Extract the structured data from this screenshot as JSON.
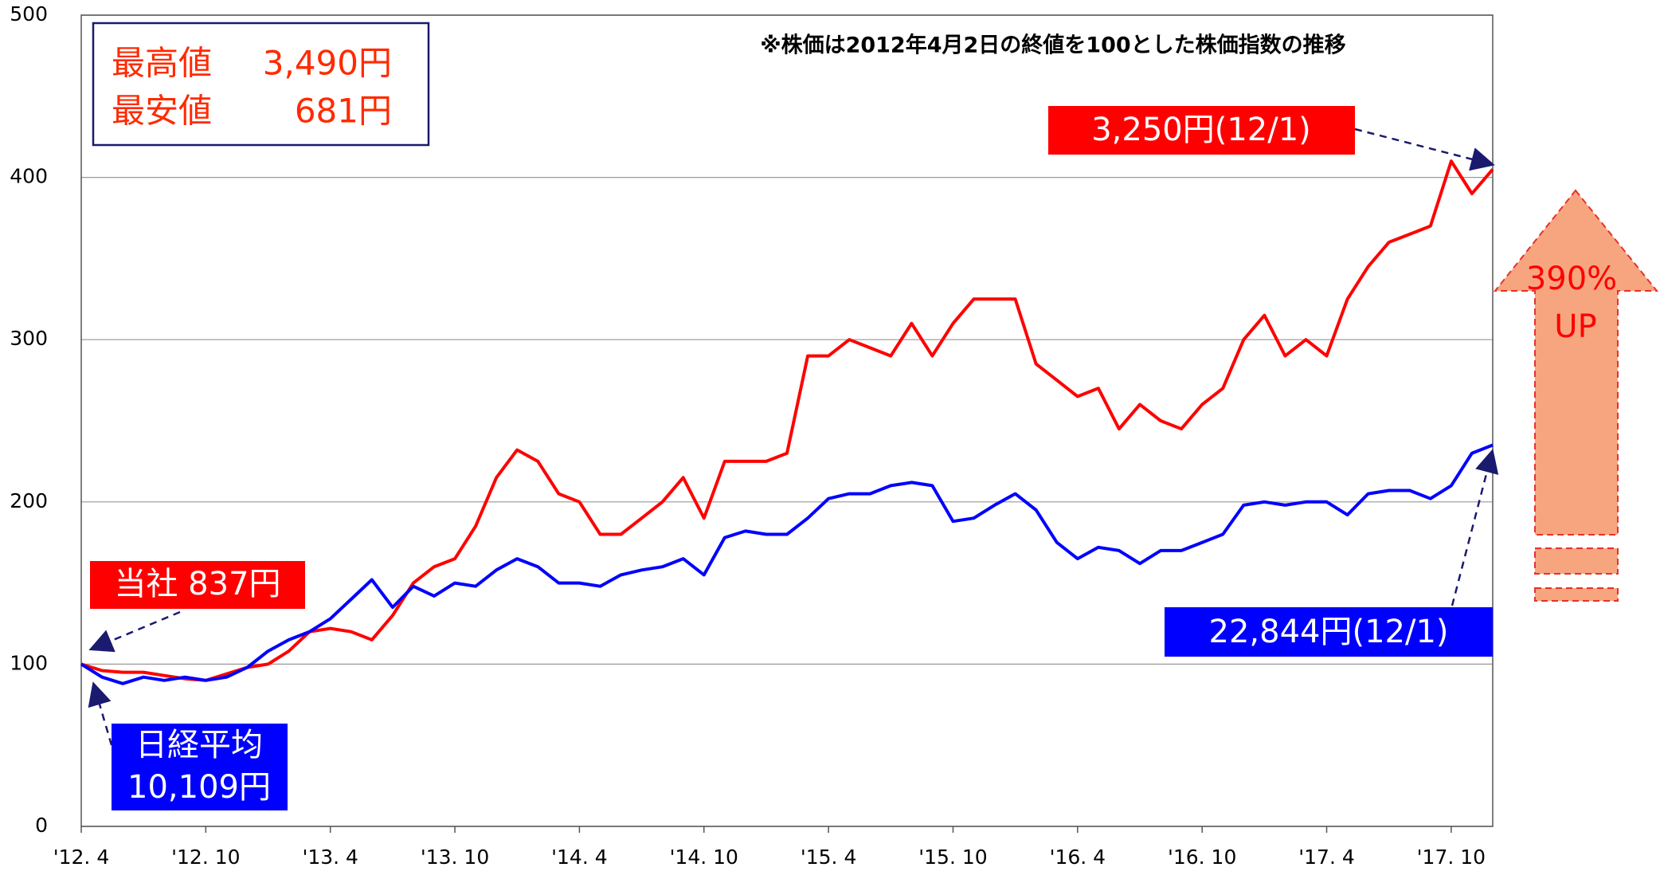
{
  "chart_data": {
    "type": "line",
    "categories": [
      "'12. 4",
      null,
      null,
      null,
      null,
      null,
      "'12. 10",
      null,
      null,
      null,
      null,
      null,
      "'13. 4",
      null,
      null,
      null,
      null,
      null,
      "'13. 10",
      null,
      null,
      null,
      null,
      null,
      "'14. 4",
      null,
      null,
      null,
      null,
      null,
      "'14. 10",
      null,
      null,
      null,
      null,
      null,
      "'15. 4",
      null,
      null,
      null,
      null,
      null,
      "'15. 10",
      null,
      null,
      null,
      null,
      null,
      "'16. 4",
      null,
      null,
      null,
      null,
      null,
      "'16. 10",
      null,
      null,
      null,
      null,
      null,
      "'17. 4",
      null,
      null,
      null,
      null,
      null,
      "'17. 10",
      null,
      null
    ],
    "series": [
      {
        "color": "#ff0000",
        "values": [
          100,
          96,
          95,
          95,
          93,
          91,
          90,
          94,
          98,
          100,
          108,
          120,
          122,
          120,
          115,
          130,
          150,
          160,
          165,
          185,
          215,
          232,
          225,
          205,
          200,
          180,
          180,
          190,
          200,
          215,
          190,
          225,
          225,
          225,
          230,
          290,
          290,
          300,
          295,
          290,
          310,
          290,
          310,
          325,
          325,
          325,
          285,
          275,
          265,
          270,
          245,
          260,
          250,
          245,
          260,
          270,
          300,
          315,
          290,
          300,
          290,
          325,
          345,
          360,
          365,
          370,
          410,
          390,
          405
        ]
      },
      {
        "color": "#0000ff",
        "values": [
          100,
          92,
          88,
          92,
          90,
          92,
          90,
          92,
          98,
          108,
          115,
          120,
          128,
          140,
          152,
          135,
          148,
          142,
          150,
          148,
          158,
          165,
          160,
          150,
          150,
          148,
          155,
          158,
          160,
          165,
          155,
          178,
          182,
          180,
          180,
          190,
          202,
          205,
          205,
          210,
          212,
          210,
          188,
          190,
          198,
          205,
          195,
          175,
          165,
          172,
          170,
          162,
          170,
          170,
          175,
          180,
          198,
          200,
          198,
          200,
          200,
          192,
          205,
          207,
          207,
          202,
          210,
          230,
          235
        ]
      }
    ],
    "ylim": [
      0,
      500
    ],
    "yticks": [
      0,
      100,
      200,
      300,
      400,
      500
    ],
    "grid": true,
    "annotations": {
      "note": "※株価は2012年4月2日の終値を100とした株価指数の推移",
      "max_label": "最高値",
      "max_value": "3,490円",
      "min_label": "最安値",
      "min_value": "681円",
      "company_latest": "3,250円(12/1)",
      "company_start": "当社 837円",
      "nikkei_latest": "22,844円(12/1)",
      "nikkei_name": "日経平均",
      "nikkei_start": "10,109円",
      "growth": "390%",
      "growth_word": "UP"
    }
  }
}
